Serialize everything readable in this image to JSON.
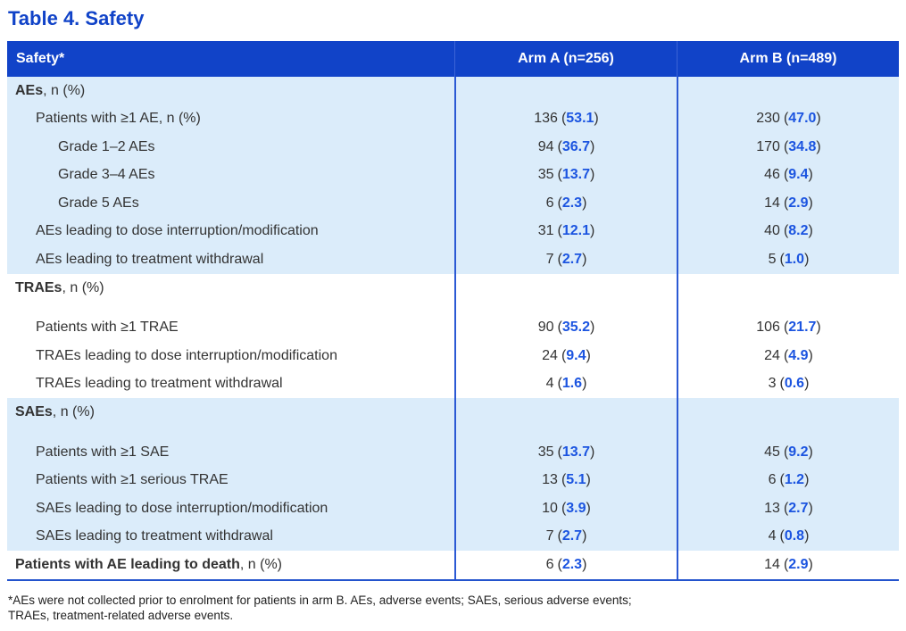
{
  "title": "Table 4. Safety",
  "colors": {
    "header_bg": "#1143c8",
    "title_blue": "#1143c8",
    "row_band": "#dbecfa",
    "pct_blue": "#1b54e0",
    "grid_blue": "#2b59d4"
  },
  "header": {
    "col1": "Safety*",
    "col2": "Arm A (n=256)",
    "col3": "Arm B (n=489)"
  },
  "vf": {
    "open": "(",
    "close": ")"
  },
  "rows": [
    {
      "label_b": "AEs",
      "label_t": ", n (%)"
    },
    {
      "label_t": "Patients with ≥1 AE, n (%)",
      "a_n": "136",
      "a_pct": "53.1",
      "b_n": "230",
      "b_pct": "47.0"
    },
    {
      "label_t": "Grade 1–2 AEs",
      "a_n": "94",
      "a_pct": "36.7",
      "b_n": "170",
      "b_pct": "34.8"
    },
    {
      "label_t": "Grade 3–4 AEs",
      "a_n": "35",
      "a_pct": "13.7",
      "b_n": "46",
      "b_pct": "9.4"
    },
    {
      "label_t": "Grade 5 AEs",
      "a_n": "6",
      "a_pct": "2.3",
      "b_n": "14",
      "b_pct": "2.9"
    },
    {
      "label_t": "AEs leading to dose interruption/modification",
      "a_n": "31",
      "a_pct": "12.1",
      "b_n": "40",
      "b_pct": "8.2"
    },
    {
      "label_t": "AEs leading to treatment withdrawal",
      "a_n": "7",
      "a_pct": "2.7",
      "b_n": "5",
      "b_pct": "1.0"
    },
    {
      "label_b": "TRAEs",
      "label_t": ", n (%)"
    },
    {
      "label_t": "Patients with ≥1 TRAE",
      "a_n": "90",
      "a_pct": "35.2",
      "b_n": "106",
      "b_pct": "21.7"
    },
    {
      "label_t": "TRAEs leading to dose interruption/modification",
      "a_n": "24",
      "a_pct": "9.4",
      "b_n": "24",
      "b_pct": "4.9"
    },
    {
      "label_t": "TRAEs leading to treatment withdrawal",
      "a_n": "4",
      "a_pct": "1.6",
      "b_n": "3",
      "b_pct": "0.6"
    },
    {
      "label_b": "SAEs",
      "label_t": ", n (%)"
    },
    {
      "label_t": "Patients with ≥1 SAE",
      "a_n": "35",
      "a_pct": "13.7",
      "b_n": "45",
      "b_pct": "9.2"
    },
    {
      "label_t": "Patients with ≥1 serious TRAE",
      "a_n": "13",
      "a_pct": "5.1",
      "b_n": "6",
      "b_pct": "1.2"
    },
    {
      "label_t": "SAEs leading to dose interruption/modification",
      "a_n": "10",
      "a_pct": "3.9",
      "b_n": "13",
      "b_pct": "2.7"
    },
    {
      "label_t": "SAEs leading to treatment withdrawal",
      "a_n": "7",
      "a_pct": "2.7",
      "b_n": "4",
      "b_pct": "0.8"
    },
    {
      "label_b": "Patients with AE leading to death",
      "label_t": ", n (%)",
      "a_n": "6",
      "a_pct": "2.3",
      "b_n": "14",
      "b_pct": "2.9"
    }
  ],
  "footnote": {
    "line1": "*AEs were not collected prior to enrolment for patients in arm B. AEs, adverse events; SAEs, serious adverse events;",
    "line2": "TRAEs, treatment-related adverse events."
  }
}
